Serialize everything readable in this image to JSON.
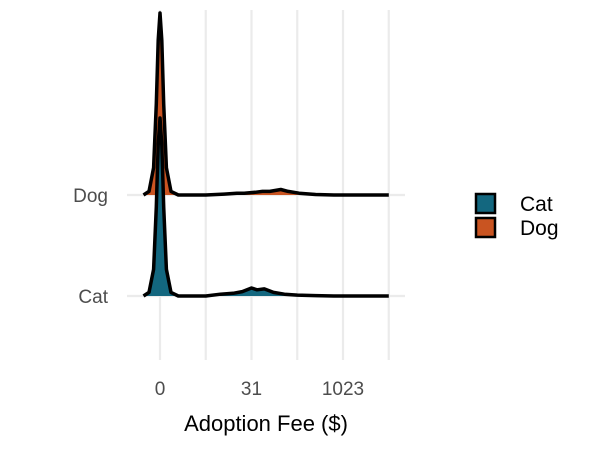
{
  "chart_data": {
    "type": "ridgeline",
    "xlabel": "Adoption Fee ($)",
    "ylabel": "",
    "x_scale": "log2(x+1)",
    "xlim": [
      0,
      11
    ],
    "x_ticks": [
      {
        "value": 0,
        "label": "0"
      },
      {
        "value": 5,
        "label": "31"
      },
      {
        "value": 10,
        "label": "1023"
      }
    ],
    "x_minor_gridlines": [
      2.5,
      7.5
    ],
    "categories": [
      "Cat",
      "Dog"
    ],
    "legend": {
      "position": "right",
      "entries": [
        "Cat",
        "Dog"
      ]
    },
    "grid": true,
    "series": [
      {
        "name": "Cat",
        "color": "#13677f",
        "density": [
          [
            -0.9,
            0.0
          ],
          [
            -0.6,
            0.02
          ],
          [
            -0.35,
            0.15
          ],
          [
            -0.2,
            0.5
          ],
          [
            -0.1,
            0.85
          ],
          [
            0,
            1.0
          ],
          [
            0.1,
            0.85
          ],
          [
            0.2,
            0.5
          ],
          [
            0.35,
            0.15
          ],
          [
            0.6,
            0.02
          ],
          [
            1.0,
            0.0
          ],
          [
            1.5,
            0.0
          ],
          [
            2.5,
            0.0
          ],
          [
            3.3,
            0.01
          ],
          [
            4.0,
            0.015
          ],
          [
            4.5,
            0.025
          ],
          [
            5.0,
            0.045
          ],
          [
            5.3,
            0.035
          ],
          [
            5.7,
            0.04
          ],
          [
            6.2,
            0.02
          ],
          [
            6.8,
            0.01
          ],
          [
            7.5,
            0.005
          ],
          [
            8.5,
            0.002
          ],
          [
            9.5,
            0.0
          ],
          [
            10.0,
            0.0
          ]
        ]
      },
      {
        "name": "Dog",
        "color": "#c95421",
        "density": [
          [
            -0.9,
            0.0
          ],
          [
            -0.6,
            0.02
          ],
          [
            -0.35,
            0.15
          ],
          [
            -0.2,
            0.5
          ],
          [
            -0.1,
            0.85
          ],
          [
            0,
            1.0
          ],
          [
            0.1,
            0.85
          ],
          [
            0.2,
            0.5
          ],
          [
            0.35,
            0.15
          ],
          [
            0.6,
            0.02
          ],
          [
            1.0,
            0.0
          ],
          [
            1.5,
            0.0
          ],
          [
            2.5,
            0.0
          ],
          [
            3.5,
            0.005
          ],
          [
            4.2,
            0.01
          ],
          [
            4.6,
            0.01
          ],
          [
            5.2,
            0.015
          ],
          [
            5.6,
            0.02
          ],
          [
            6.0,
            0.02
          ],
          [
            6.6,
            0.03
          ],
          [
            7.0,
            0.02
          ],
          [
            7.6,
            0.01
          ],
          [
            8.5,
            0.003
          ],
          [
            9.5,
            0.0
          ],
          [
            10.0,
            0.0
          ]
        ]
      }
    ]
  }
}
